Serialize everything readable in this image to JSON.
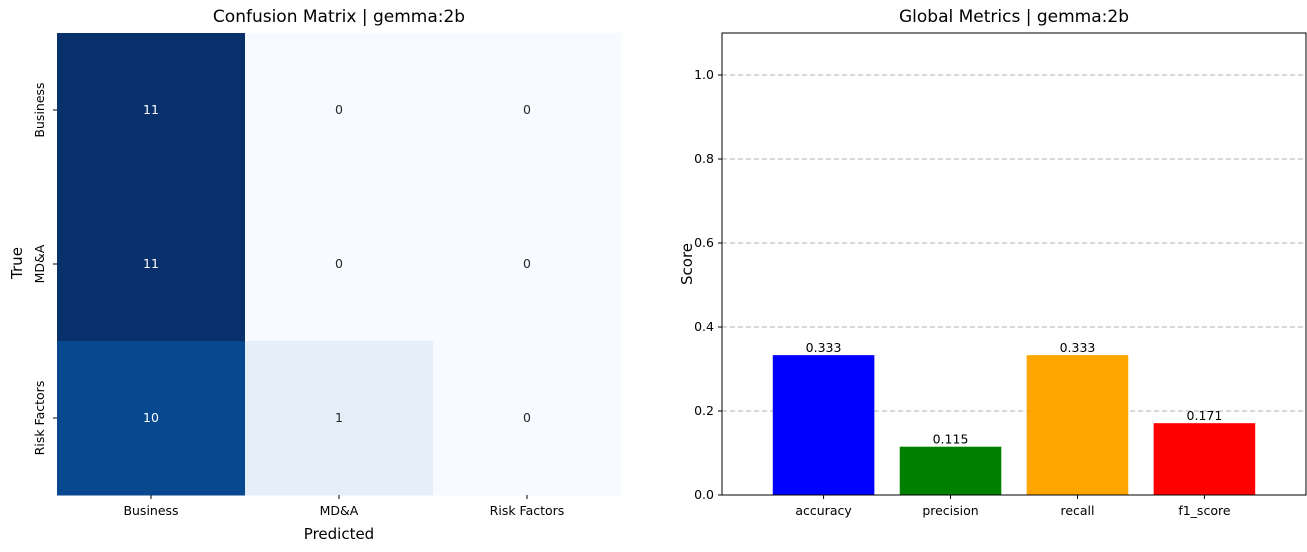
{
  "chart_data": [
    {
      "type": "heatmap",
      "title": "Confusion Matrix | gemma:2b",
      "xlabel": "Predicted",
      "ylabel": "True",
      "x_categories": [
        "Business",
        "MD&A",
        "Risk Factors"
      ],
      "y_categories": [
        "Business",
        "MD&A",
        "Risk Factors"
      ],
      "values": [
        [
          11,
          0,
          0
        ],
        [
          11,
          0,
          0
        ],
        [
          10,
          1,
          0
        ]
      ],
      "colormap": "Blues",
      "colorbar": false
    },
    {
      "type": "bar",
      "title": "Global Metrics | gemma:2b",
      "xlabel": "",
      "ylabel": "Score",
      "categories": [
        "accuracy",
        "precision",
        "recall",
        "f1_score"
      ],
      "values": [
        0.333,
        0.115,
        0.333,
        0.171
      ],
      "value_labels": [
        "0.333",
        "0.115",
        "0.333",
        "0.171"
      ],
      "colors": [
        "#0000ff",
        "#008000",
        "#ffa500",
        "#ff0000"
      ],
      "ylim": [
        0,
        1.1
      ],
      "yticks": [
        "0.0",
        "0.2",
        "0.4",
        "0.6",
        "0.8",
        "1.0"
      ],
      "grid": "y-dashed"
    }
  ]
}
